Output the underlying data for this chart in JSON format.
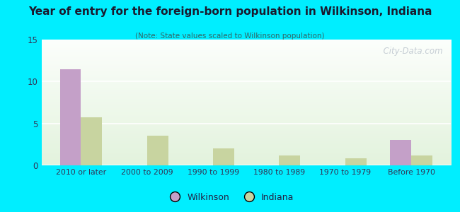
{
  "title": "Year of entry for the foreign-born population in Wilkinson, Indiana",
  "subtitle": "(Note: State values scaled to Wilkinson population)",
  "categories": [
    "2010 or later",
    "2000 to 2009",
    "1990 to 1999",
    "1980 to 1989",
    "1970 to 1979",
    "Before 1970"
  ],
  "wilkinson": [
    11.4,
    0,
    0,
    0,
    0,
    3.0
  ],
  "indiana": [
    5.7,
    3.5,
    2.0,
    1.2,
    0.8,
    1.2
  ],
  "wilkinson_color": "#c4a0c8",
  "indiana_color": "#c8d4a0",
  "background_color": "#00eeff",
  "ylim": [
    0,
    15
  ],
  "yticks": [
    0,
    5,
    10,
    15
  ],
  "bar_width": 0.32,
  "legend_labels": [
    "Wilkinson",
    "Indiana"
  ],
  "watermark": "  City-Data.com"
}
